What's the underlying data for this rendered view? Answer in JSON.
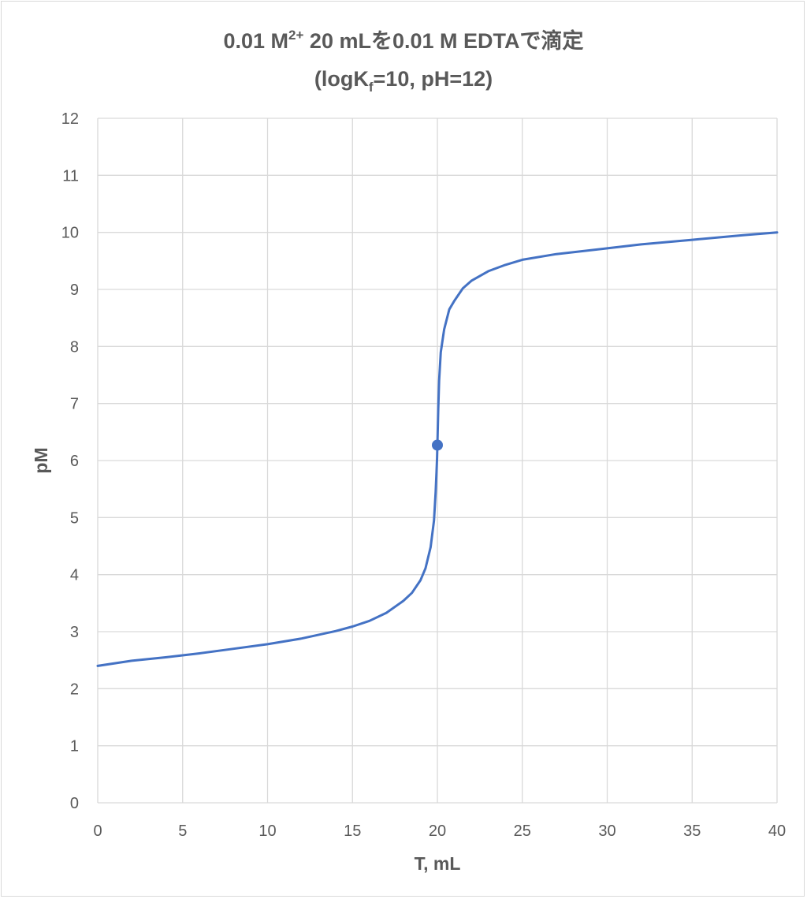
{
  "chart_data": {
    "type": "line",
    "title_main": "0.01 M",
    "title_sup": "2+",
    "title_rest": " 20 mLを0.01 M EDTAで滴定",
    "subtitle_prefix": "(logK",
    "subtitle_sub": "f",
    "subtitle_rest": "=10, pH=12)",
    "xlabel": "T, mL",
    "ylabel": "pM",
    "xlim": [
      0,
      40
    ],
    "ylim": [
      0,
      12
    ],
    "xticks": [
      0,
      5,
      10,
      15,
      20,
      25,
      30,
      35,
      40
    ],
    "yticks": [
      0,
      1,
      2,
      3,
      4,
      5,
      6,
      7,
      8,
      9,
      10,
      11,
      12
    ],
    "grid": true,
    "legend": "none",
    "series": [
      {
        "color": "#4472c4",
        "x": [
          0,
          2,
          4,
          6,
          8,
          10,
          12,
          14,
          15,
          16,
          17,
          18,
          18.5,
          19,
          19.3,
          19.6,
          19.8,
          19.9,
          19.95,
          19.98,
          20,
          20.02,
          20.05,
          20.1,
          20.2,
          20.4,
          20.7,
          21,
          21.5,
          22,
          23,
          24,
          25,
          27,
          30,
          32,
          35,
          38,
          40
        ],
        "y": [
          2.4,
          2.49,
          2.55,
          2.62,
          2.7,
          2.78,
          2.88,
          3.01,
          3.09,
          3.19,
          3.33,
          3.54,
          3.68,
          3.9,
          4.11,
          4.48,
          4.95,
          5.45,
          5.8,
          6.05,
          6.27,
          6.5,
          6.9,
          7.4,
          7.9,
          8.3,
          8.65,
          8.8,
          9.02,
          9.15,
          9.32,
          9.43,
          9.52,
          9.62,
          9.72,
          9.79,
          9.87,
          9.95,
          10.0
        ]
      }
    ],
    "markers": [
      {
        "x": 20,
        "y": 6.27,
        "color": "#4472c4"
      }
    ]
  }
}
